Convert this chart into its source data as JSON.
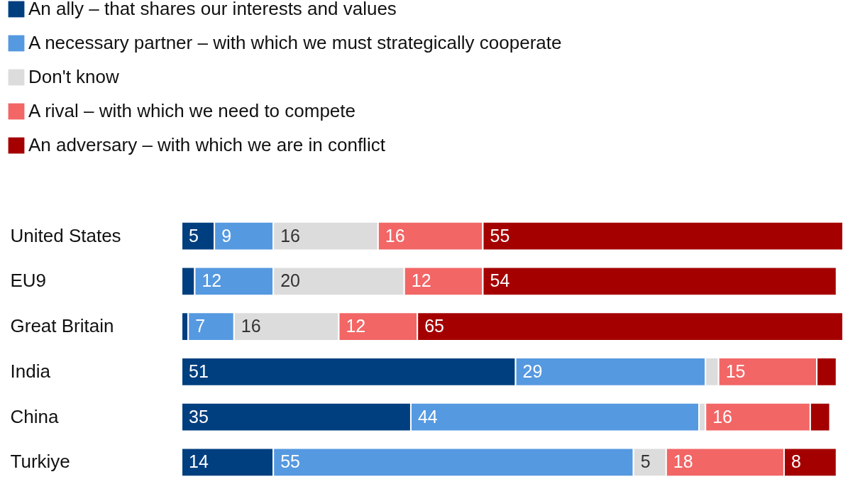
{
  "chart_data": {
    "type": "bar",
    "orientation": "horizontal",
    "stacked": true,
    "legend": "top left",
    "categories": [
      "United States",
      "EU9",
      "Great Britain",
      "India",
      "China",
      "Turkiye"
    ],
    "series": [
      {
        "name": "An ally – that shares our interests and values",
        "color": "#003f7f",
        "values": [
          5,
          2,
          1,
          51,
          35,
          14
        ],
        "value_labels": [
          "5",
          null,
          null,
          "51",
          "35",
          "14"
        ]
      },
      {
        "name": "A necessary partner – with which we must strategically cooperate",
        "color": "#5599e0",
        "values": [
          9,
          12,
          7,
          29,
          44,
          55
        ],
        "value_labels": [
          "9",
          "12",
          "7",
          "29",
          "44",
          "55"
        ]
      },
      {
        "name": "Don't know",
        "color": "#dcdcdc",
        "values": [
          16,
          20,
          16,
          2,
          1,
          5
        ],
        "value_labels": [
          "16",
          "20",
          "16",
          null,
          null,
          "5"
        ]
      },
      {
        "name": "A rival – with which we need to compete",
        "color": "#f26666",
        "values": [
          16,
          12,
          12,
          15,
          16,
          18
        ],
        "value_labels": [
          "16",
          "12",
          "12",
          "15",
          "16",
          "18"
        ]
      },
      {
        "name": "An adversary – with which we are in conflict",
        "color": "#a50000",
        "values": [
          55,
          54,
          65,
          3,
          3,
          8
        ],
        "value_labels": [
          "55",
          "54",
          "65",
          null,
          null,
          "8"
        ]
      }
    ]
  }
}
